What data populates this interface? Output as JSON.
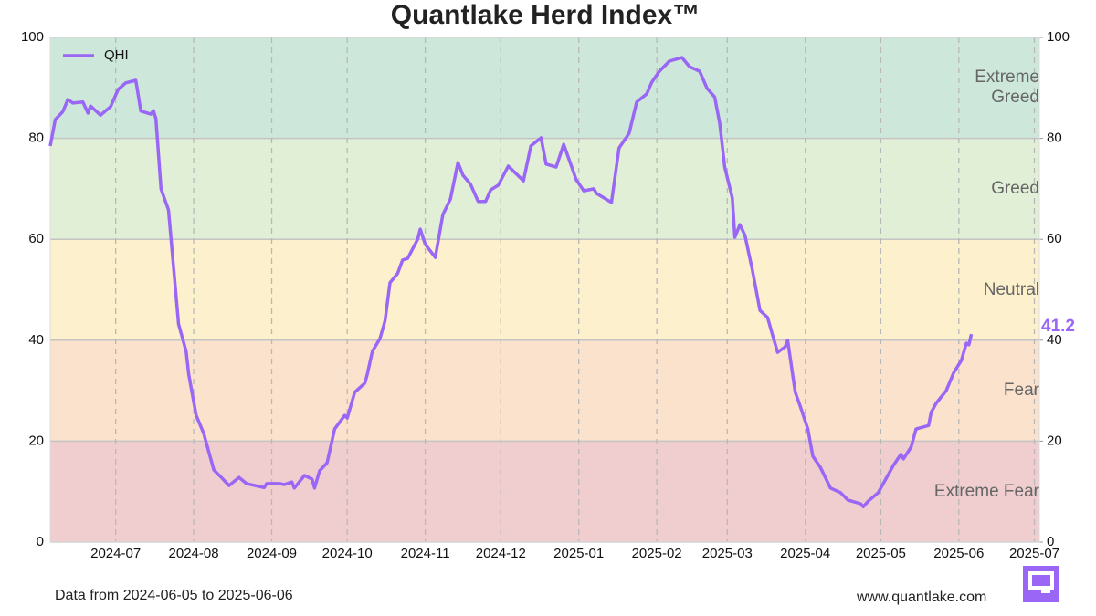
{
  "chart_data": {
    "type": "line",
    "title": "Quantlake Herd Index™",
    "x": [
      "2024-06-05",
      "2024-06-07",
      "2024-06-10",
      "2024-06-12",
      "2024-06-14",
      "2024-06-18",
      "2024-06-20",
      "2024-06-21",
      "2024-06-25",
      "2024-06-29",
      "2024-07-02",
      "2024-07-05",
      "2024-07-09",
      "2024-07-11",
      "2024-07-15",
      "2024-07-16",
      "2024-07-17",
      "2024-07-19",
      "2024-07-22",
      "2024-07-26",
      "2024-07-29",
      "2024-07-30",
      "2024-08-02",
      "2024-08-05",
      "2024-08-09",
      "2024-08-12",
      "2024-08-15",
      "2024-08-19",
      "2024-08-22",
      "2024-08-29",
      "2024-08-30",
      "2024-09-04",
      "2024-09-06",
      "2024-09-09",
      "2024-09-10",
      "2024-09-14",
      "2024-09-17",
      "2024-09-18",
      "2024-09-20",
      "2024-09-23",
      "2024-09-26",
      "2024-09-30",
      "2024-10-01",
      "2024-10-04",
      "2024-10-08",
      "2024-10-09",
      "2024-10-11",
      "2024-10-14",
      "2024-10-16",
      "2024-10-18",
      "2024-10-21",
      "2024-10-23",
      "2024-10-25",
      "2024-10-29",
      "2024-10-30",
      "2024-11-01",
      "2024-11-05",
      "2024-11-08",
      "2024-11-11",
      "2024-11-14",
      "2024-11-16",
      "2024-11-19",
      "2024-11-22",
      "2024-11-25",
      "2024-11-27",
      "2024-11-30",
      "2024-12-04",
      "2024-12-10",
      "2024-12-13",
      "2024-12-17",
      "2024-12-19",
      "2024-12-23",
      "2024-12-26",
      "2024-12-31",
      "2025-01-03",
      "2025-01-07",
      "2025-01-08",
      "2025-01-14",
      "2025-01-17",
      "2025-01-21",
      "2025-01-24",
      "2025-01-28",
      "2025-01-30",
      "2025-02-02",
      "2025-02-06",
      "2025-02-11",
      "2025-02-14",
      "2025-02-18",
      "2025-02-21",
      "2025-02-24",
      "2025-02-26",
      "2025-02-28",
      "2025-03-03",
      "2025-03-04",
      "2025-03-06",
      "2025-03-08",
      "2025-03-11",
      "2025-03-14",
      "2025-03-17",
      "2025-03-19",
      "2025-03-21",
      "2025-03-24",
      "2025-03-25",
      "2025-03-28",
      "2025-03-30",
      "2025-04-02",
      "2025-04-04",
      "2025-04-07",
      "2025-04-11",
      "2025-04-15",
      "2025-04-18",
      "2025-04-23",
      "2025-04-24",
      "2025-04-26",
      "2025-04-30",
      "2025-05-03",
      "2025-05-06",
      "2025-05-09",
      "2025-05-10",
      "2025-05-13",
      "2025-05-15",
      "2025-05-20",
      "2025-05-21",
      "2025-05-23",
      "2025-05-27",
      "2025-05-30",
      "2025-06-02",
      "2025-06-04",
      "2025-06-05",
      "2025-06-06"
    ],
    "series": [
      {
        "name": "QHI",
        "color": "#9966f5",
        "values": [
          78.5,
          83.7,
          85.3,
          87.7,
          87,
          87.2,
          85,
          86.4,
          84.6,
          86.3,
          89.7,
          91,
          91.5,
          85.4,
          84.8,
          85.5,
          83.9,
          70,
          65.8,
          43.2,
          37.8,
          33.3,
          25.1,
          21.5,
          14.3,
          12.8,
          11.2,
          12.8,
          11.6,
          10.8,
          11.6,
          11.6,
          11.4,
          11.9,
          10.7,
          13.2,
          12.5,
          10.7,
          14.1,
          15.7,
          22.4,
          25.1,
          24.6,
          29.7,
          31.5,
          33.3,
          37.8,
          40.3,
          43.8,
          51.4,
          53.2,
          55.9,
          56.2,
          60,
          62,
          59,
          56.4,
          64.9,
          68,
          75.2,
          72.7,
          70.9,
          67.5,
          67.5,
          69.8,
          70.7,
          74.5,
          71.6,
          78.5,
          80.1,
          74.9,
          74.3,
          78.8,
          71.8,
          69.6,
          70,
          69.1,
          67.3,
          78.1,
          81,
          87.2,
          88.8,
          91.1,
          93.3,
          95.3,
          96,
          94.2,
          93.3,
          89.9,
          88.2,
          83,
          74.3,
          68.2,
          60.4,
          62.9,
          60.8,
          53.9,
          45.9,
          44.5,
          41,
          37.6,
          38.7,
          40,
          29.7,
          26.9,
          22.4,
          17,
          14.8,
          10.7,
          9.8,
          8.3,
          7.6,
          7,
          8.1,
          9.8,
          12.5,
          15.2,
          17.4,
          16.5,
          18.8,
          22.4,
          23.1,
          25.7,
          27.5,
          30,
          33.6,
          36,
          39.4,
          39.1,
          41.2
        ]
      }
    ],
    "zones": [
      {
        "from": 80,
        "to": 100,
        "label": "Extreme Greed",
        "color": "#cde7da"
      },
      {
        "from": 60,
        "to": 80,
        "label": "Greed",
        "color": "#e0efd6"
      },
      {
        "from": 40,
        "to": 60,
        "label": "Neutral",
        "color": "#fdf0cc"
      },
      {
        "from": 20,
        "to": 40,
        "label": "Fear",
        "color": "#fbe2cc"
      },
      {
        "from": 0,
        "to": 20,
        "label": "Extreme Fear",
        "color": "#f0cdcf"
      }
    ],
    "xlim": [
      "2024-06-05",
      "2025-07-03"
    ],
    "xticks": [
      {
        "value": "2024-07-01",
        "label": "2024-07"
      },
      {
        "value": "2024-08-01",
        "label": "2024-08"
      },
      {
        "value": "2024-09-01",
        "label": "2024-09"
      },
      {
        "value": "2024-10-01",
        "label": "2024-10"
      },
      {
        "value": "2024-11-01",
        "label": "2024-11"
      },
      {
        "value": "2024-12-01",
        "label": "2024-12"
      },
      {
        "value": "2025-01-01",
        "label": "2025-01"
      },
      {
        "value": "2025-02-01",
        "label": "2025-02"
      },
      {
        "value": "2025-03-01",
        "label": "2025-03"
      },
      {
        "value": "2025-04-01",
        "label": "2025-04"
      },
      {
        "value": "2025-05-01",
        "label": "2025-05"
      },
      {
        "value": "2025-06-01",
        "label": "2025-06"
      },
      {
        "value": "2025-07-01",
        "label": "2025-07"
      }
    ],
    "ylim": [
      0,
      100
    ],
    "yticks": [
      0,
      20,
      40,
      60,
      80,
      100
    ],
    "y2lim": [
      0,
      100
    ],
    "y2ticks": [
      0,
      20,
      40,
      60,
      80,
      100
    ],
    "grid": true,
    "legend": "upper left",
    "footnote": "Data from 2024-06-05 to 2025-06-06",
    "source": "www.quantlake.com"
  }
}
